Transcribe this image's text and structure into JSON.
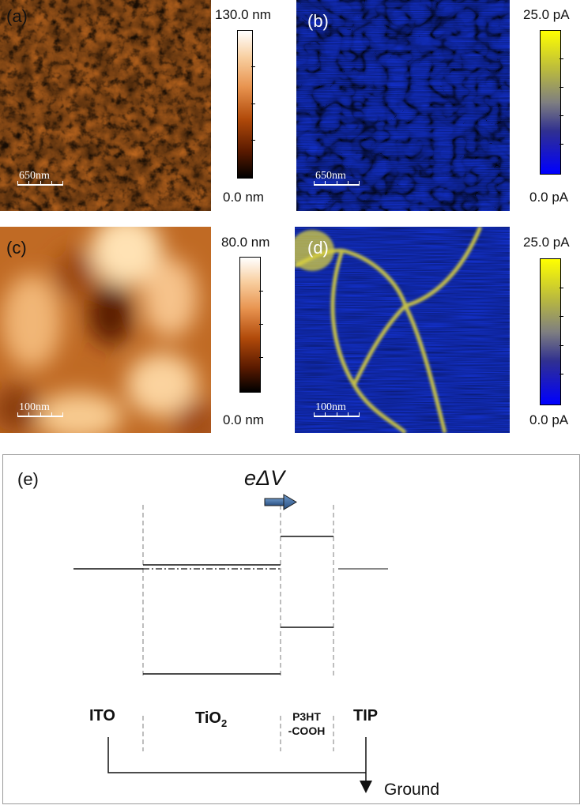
{
  "panels": {
    "a": {
      "label": "(a)",
      "scale_bar": "650nm",
      "colorbar": {
        "max": "130.0 nm",
        "min": "0.0 nm"
      }
    },
    "b": {
      "label": "(b)",
      "scale_bar": "650nm",
      "colorbar": {
        "max": "25.0 pA",
        "min": "0.0 pA"
      }
    },
    "c": {
      "label": "(c)",
      "scale_bar": "100nm",
      "colorbar": {
        "max": "80.0 nm",
        "min": "0.0 nm"
      }
    },
    "d": {
      "label": "(d)",
      "scale_bar": "100nm",
      "colorbar": {
        "max": "25.0 pA",
        "min": "0.0 pA"
      }
    }
  },
  "colors": {
    "height_map": [
      "#1a0500",
      "#7a2a00",
      "#c8661a",
      "#f0b27a",
      "#fdf6ec"
    ],
    "current_map": [
      "#0c1fd6",
      "#7f7f80",
      "#ffff00"
    ]
  },
  "diagram_e": {
    "label": "(e)",
    "energy_label": "eΔV",
    "layers": {
      "ito": "ITO",
      "tio2": "TiO",
      "tio2_subscript": "2",
      "p3ht_line1": "P3HT",
      "p3ht_line2": "-COOH",
      "tip": "TIP"
    },
    "ground": "Ground"
  }
}
